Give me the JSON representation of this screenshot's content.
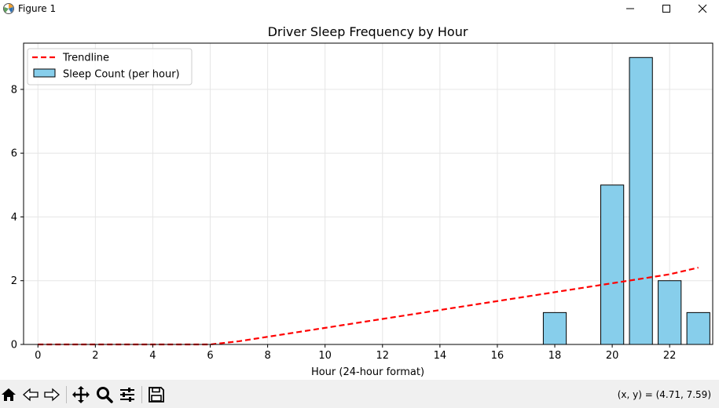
{
  "window": {
    "title": "Figure 1",
    "controls": [
      "minimize",
      "maximize",
      "close"
    ]
  },
  "toolbar": {
    "buttons": [
      {
        "name": "home",
        "icon": "home-icon"
      },
      {
        "name": "back",
        "icon": "back-arrow-icon"
      },
      {
        "name": "forward",
        "icon": "forward-arrow-icon"
      },
      {
        "name": "pan",
        "icon": "move-icon"
      },
      {
        "name": "zoom",
        "icon": "magnifier-icon"
      },
      {
        "name": "configure-subplots",
        "icon": "sliders-icon"
      },
      {
        "name": "save",
        "icon": "floppy-disk-icon"
      }
    ],
    "coords": "(x, y) = (4.71, 7.59)"
  },
  "chart_data": {
    "type": "bar",
    "title": "Driver Sleep Frequency by Hour",
    "xlabel": "Hour (24-hour format)",
    "ylabel": "",
    "x": [
      0,
      1,
      2,
      3,
      4,
      5,
      6,
      7,
      8,
      9,
      10,
      11,
      12,
      13,
      14,
      15,
      16,
      17,
      18,
      19,
      20,
      21,
      22,
      23
    ],
    "values": [
      0,
      0,
      0,
      0,
      0,
      0,
      0,
      0,
      0,
      0,
      0,
      0,
      0,
      0,
      0,
      0,
      0,
      0,
      1,
      0,
      5,
      9,
      2,
      1
    ],
    "xlim": [
      -0.5,
      23.5
    ],
    "ylim": [
      0,
      9.45
    ],
    "xticks": [
      0,
      2,
      4,
      6,
      8,
      10,
      12,
      14,
      16,
      18,
      20,
      22
    ],
    "yticks": [
      0,
      2,
      4,
      6,
      8
    ],
    "grid": true,
    "legend": {
      "placement": "top-left",
      "entries": [
        "Trendline",
        "Sleep Count (per hour)"
      ]
    },
    "series": [
      {
        "name": "Sleep Count (per hour)",
        "kind": "bar",
        "color": "#87ceeb",
        "edgecolor": "#000000"
      },
      {
        "name": "Trendline",
        "kind": "line",
        "style": "dashed",
        "color": "#ff0000",
        "x": [
          0,
          1,
          2,
          3,
          4,
          5,
          6,
          7,
          8,
          9,
          10,
          11,
          12,
          13,
          14,
          15,
          16,
          17,
          18,
          19,
          20,
          21,
          22,
          23
        ],
        "y": [
          0,
          0,
          0,
          0,
          0,
          0,
          0,
          0.1,
          0.24,
          0.38,
          0.52,
          0.66,
          0.8,
          0.94,
          1.08,
          1.22,
          1.36,
          1.5,
          1.64,
          1.78,
          1.92,
          2.06,
          2.2,
          2.41
        ]
      }
    ]
  }
}
